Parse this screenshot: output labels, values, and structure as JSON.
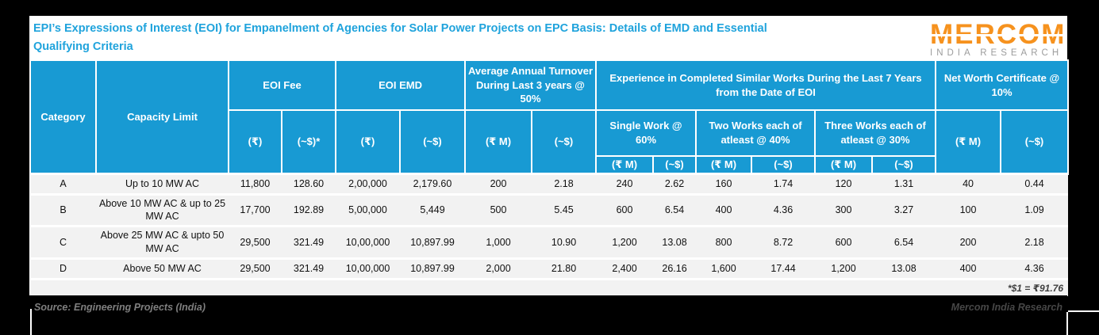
{
  "title": {
    "line1": "EPI’s Expressions of Interest (EOI) for Empanelment of Agencies for Solar Power Projects on EPC Basis: Details of EMD and Essential",
    "line2": "Qualifying Criteria"
  },
  "logo": {
    "brand": "MERCOM",
    "tagline": "INDIA RESEARCH"
  },
  "colors": {
    "accent_blue": "#189AD3",
    "title_blue": "#1FA3DC",
    "logo_orange": "#F6921E",
    "tagline_gray": "#9C9C9C",
    "row_gray": "#F2F2F2",
    "background_black": "#000000"
  },
  "table": {
    "header": {
      "category": "Category",
      "capacity_limit": "Capacity Limit",
      "eoi_fee": {
        "label": "EOI Fee",
        "rupee": "(₹)",
        "usd": "(~$)*"
      },
      "eoi_emd": {
        "label": "EOI EMD",
        "rupee": "(₹)",
        "usd": "(~$)"
      },
      "turnover": {
        "label": "Average Annual Turnover During Last 3 years @ 50%",
        "rupee": "(₹ M)",
        "usd": "(~$)"
      },
      "experience": {
        "label": "Experience in Completed Similar Works During the Last 7 Years from the Date of EOI",
        "single": {
          "label": "Single Work @ 60%",
          "rupee": "(₹ M)",
          "usd": "(~$)"
        },
        "two": {
          "label": "Two Works each of atleast @ 40%",
          "rupee": "(₹ M)",
          "usd": "(~$)"
        },
        "three": {
          "label": "Three Works each of atleast @ 30%",
          "rupee": "(₹ M)",
          "usd": "(~$)"
        }
      },
      "net_worth": {
        "label": "Net Worth Certificate @ 10%",
        "rupee": "(₹ M)",
        "usd": "(~$)"
      }
    },
    "rows": [
      {
        "category": "A",
        "capacity": "Up to 10 MW AC",
        "values": [
          "11,800",
          "128.60",
          "2,00,000",
          "2,179.60",
          "200",
          "2.18",
          "240",
          "2.62",
          "160",
          "1.74",
          "120",
          "1.31",
          "40",
          "0.44"
        ]
      },
      {
        "category": "B",
        "capacity": "Above 10 MW AC & up to 25 MW AC",
        "values": [
          "17,700",
          "192.89",
          "5,00,000",
          "5,449",
          "500",
          "5.45",
          "600",
          "6.54",
          "400",
          "4.36",
          "300",
          "3.27",
          "100",
          "1.09"
        ]
      },
      {
        "category": "C",
        "capacity": "Above 25 MW AC & upto 50 MW AC",
        "values": [
          "29,500",
          "321.49",
          "10,00,000",
          "10,897.99",
          "1,000",
          "10.90",
          "1,200",
          "13.08",
          "800",
          "8.72",
          "600",
          "6.54",
          "200",
          "2.18"
        ]
      },
      {
        "category": "D",
        "capacity": "Above 50 MW AC",
        "values": [
          "29,500",
          "321.49",
          "10,00,000",
          "10,897.99",
          "2,000",
          "21.80",
          "2,400",
          "26.16",
          "1,600",
          "17.44",
          "1,200",
          "13.08",
          "400",
          "4.36"
        ]
      }
    ],
    "note": "*$1 = ₹91.76"
  },
  "footer": {
    "source": "Source: Engineering Projects (India)",
    "watermark": "Mercom India Research"
  },
  "chart_data": {
    "type": "table",
    "title": "EPI’s Expressions of Interest (EOI) for Empanelment of Agencies for Solar Power Projects on EPC Basis: Details of EMD and Essential Qualifying Criteria",
    "columns": [
      "Category",
      "Capacity Limit",
      "EOI Fee (₹)",
      "EOI Fee (~$)*",
      "EOI EMD (₹)",
      "EOI EMD (~$)",
      "Average Annual Turnover During Last 3 years @ 50% (₹ M)",
      "Average Annual Turnover During Last 3 years @ 50% (~$)",
      "Experience: Single Work @ 60% (₹ M)",
      "Experience: Single Work @ 60% (~$)",
      "Experience: Two Works each of atleast @ 40% (₹ M)",
      "Experience: Two Works each of atleast @ 40% (~$)",
      "Experience: Three Works each of atleast @ 30% (₹ M)",
      "Experience: Three Works each of atleast @ 30% (~$)",
      "Net Worth Certificate @ 10% (₹ M)",
      "Net Worth Certificate @ 10% (~$)"
    ],
    "rows": [
      [
        "A",
        "Up to 10 MW AC",
        "11,800",
        "128.60",
        "2,00,000",
        "2,179.60",
        "200",
        "2.18",
        "240",
        "2.62",
        "160",
        "1.74",
        "120",
        "1.31",
        "40",
        "0.44"
      ],
      [
        "B",
        "Above 10 MW AC & up to 25 MW AC",
        "17,700",
        "192.89",
        "5,00,000",
        "5,449",
        "500",
        "5.45",
        "600",
        "6.54",
        "400",
        "4.36",
        "300",
        "3.27",
        "100",
        "1.09"
      ],
      [
        "C",
        "Above 25 MW AC & upto 50 MW AC",
        "29,500",
        "321.49",
        "10,00,000",
        "10,897.99",
        "1,000",
        "10.90",
        "1,200",
        "13.08",
        "800",
        "8.72",
        "600",
        "6.54",
        "200",
        "2.18"
      ],
      [
        "D",
        "Above 50 MW AC",
        "29,500",
        "321.49",
        "10,00,000",
        "10,897.99",
        "2,000",
        "21.80",
        "2,400",
        "26.16",
        "1,600",
        "17.44",
        "1,200",
        "13.08",
        "400",
        "4.36"
      ]
    ],
    "footnote": "*$1 = ₹91.76",
    "source": "Source: Engineering Projects (India)"
  }
}
